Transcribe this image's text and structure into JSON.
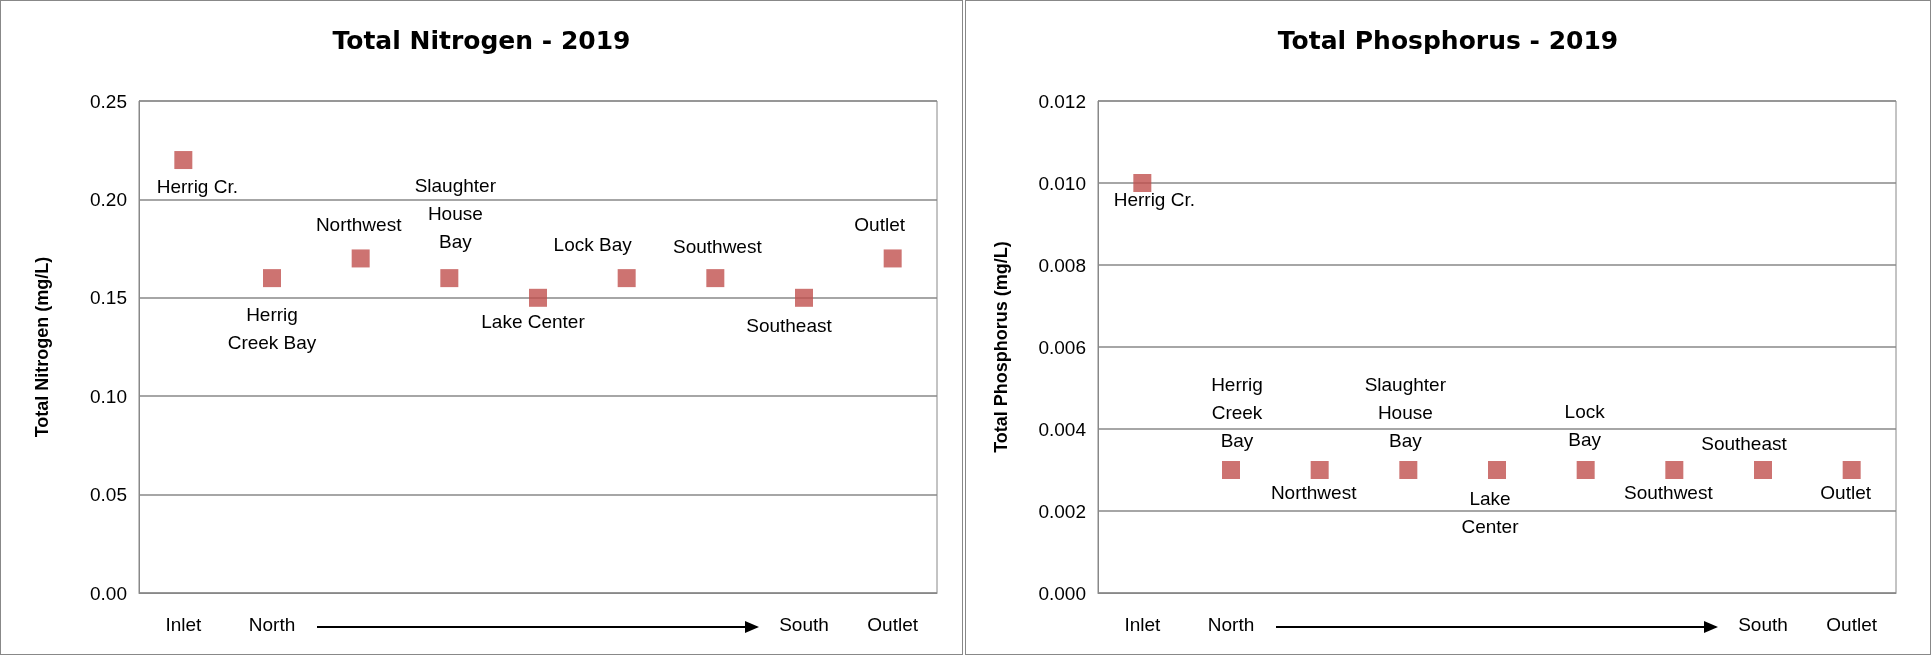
{
  "chart_data": [
    {
      "type": "scatter",
      "title": "Total Nitrogen - 2019",
      "ylabel": "Total Nitrogen (mg/L)",
      "categories": [
        "Inlet",
        "North",
        null,
        null,
        null,
        null,
        null,
        "South",
        "Outlet"
      ],
      "series": [
        {
          "color": "#c0504d",
          "values": [
            0.22,
            0.16,
            0.17,
            0.16,
            0.15,
            0.16,
            0.16,
            0.15,
            0.17
          ]
        }
      ],
      "marker": "square",
      "grid": "y",
      "ylim": [
        0,
        0.25
      ],
      "yticks": [
        {
          "value": 0,
          "label": "0.00"
        },
        {
          "value": 0.05,
          "label": "0.05"
        },
        {
          "value": 0.1,
          "label": "0.10"
        },
        {
          "value": 0.15,
          "label": "0.15"
        },
        {
          "value": 0.2,
          "label": "0.20"
        },
        {
          "value": 0.25,
          "label": "0.25"
        }
      ],
      "annotations": [
        "Herrig Cr.",
        "Herrig\nCreek Bay",
        "Northwest",
        "Slaughter\nHouse\nBay",
        "Lake Center",
        "Lock Bay",
        "Southwest",
        "Southeast",
        "Outlet"
      ]
    },
    {
      "type": "scatter",
      "title": "Total Phosphorus - 2019",
      "ylabel": "Total Phosphorus (mg/L)",
      "categories": [
        "Inlet",
        "North",
        null,
        null,
        null,
        null,
        null,
        "South",
        "Outlet"
      ],
      "series": [
        {
          "color": "#c0504d",
          "values": [
            0.01,
            0.003,
            0.003,
            0.003,
            0.003,
            0.003,
            0.003,
            0.003,
            0.003
          ]
        }
      ],
      "marker": "square",
      "grid": "y",
      "ylim": [
        0,
        0.012
      ],
      "yticks": [
        {
          "value": 0,
          "label": "0.000"
        },
        {
          "value": 0.002,
          "label": "0.002"
        },
        {
          "value": 0.004,
          "label": "0.004"
        },
        {
          "value": 0.006,
          "label": "0.006"
        },
        {
          "value": 0.008,
          "label": "0.008"
        },
        {
          "value": 0.01,
          "label": "0.010"
        },
        {
          "value": 0.012,
          "label": "0.012"
        }
      ],
      "annotations": [
        "Herrig Cr.",
        "Herrig\nCreek\nBay",
        "Northwest",
        "Slaughter\nHouse\nBay",
        "Lake\nCenter",
        "Lock\nBay",
        "Southwest",
        "Southeast",
        "Outlet"
      ]
    }
  ]
}
